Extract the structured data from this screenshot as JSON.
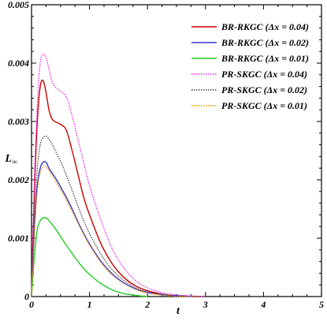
{
  "chart_data": {
    "type": "line",
    "xlabel": "t",
    "ylabel": "L",
    "ylabel_sub": "∞",
    "xlim": [
      0,
      5
    ],
    "ylim": [
      0,
      0.005
    ],
    "xticks": [
      0,
      1,
      2,
      3,
      4,
      5
    ],
    "xtick_labels": [
      "0",
      "1",
      "2",
      "3",
      "4",
      "5"
    ],
    "yticks": [
      0,
      0.001,
      0.002,
      0.003,
      0.004,
      0.005
    ],
    "ytick_labels": [
      "0",
      "0.001",
      "0.002",
      "0.003",
      "0.004",
      "0.005"
    ],
    "grid": false,
    "legend_position": "top-right",
    "series": [
      {
        "name": "BR-RKGC (Δx = 0.04)",
        "color": "#cc0000",
        "style": "solid",
        "x": [
          0,
          0.05,
          0.1,
          0.15,
          0.2,
          0.25,
          0.3,
          0.35,
          0.4,
          0.5,
          0.6,
          0.7,
          0.8,
          0.9,
          1.0,
          1.2,
          1.4,
          1.6,
          1.8,
          2.0,
          2.2,
          2.4,
          2.6,
          2.8,
          3.0
        ],
        "y": [
          0,
          0.0018,
          0.003,
          0.0036,
          0.0037,
          0.0035,
          0.0032,
          0.00305,
          0.003,
          0.00295,
          0.00285,
          0.0025,
          0.0021,
          0.0017,
          0.0014,
          0.0009,
          0.00055,
          0.00032,
          0.00018,
          0.0001,
          5e-05,
          2e-05,
          1e-05,
          0,
          0
        ]
      },
      {
        "name": "BR-RKGC (Δx = 0.02)",
        "color": "#3333cc",
        "style": "solid",
        "x": [
          0,
          0.05,
          0.1,
          0.15,
          0.2,
          0.25,
          0.3,
          0.35,
          0.4,
          0.5,
          0.6,
          0.7,
          0.8,
          0.9,
          1.0,
          1.2,
          1.4,
          1.6,
          1.8,
          2.0,
          2.2,
          2.4,
          2.6,
          2.8,
          3.0
        ],
        "y": [
          0,
          0.0012,
          0.0019,
          0.0022,
          0.0023,
          0.0023,
          0.0022,
          0.00212,
          0.00205,
          0.00188,
          0.0017,
          0.0015,
          0.00128,
          0.00108,
          0.0009,
          0.0006,
          0.00038,
          0.00023,
          0.00013,
          7e-05,
          4e-05,
          2e-05,
          1e-05,
          0,
          0
        ]
      },
      {
        "name": "BR-RKGC (Δx = 0.01)",
        "color": "#22cc22",
        "style": "solid",
        "x": [
          0,
          0.05,
          0.1,
          0.15,
          0.2,
          0.25,
          0.3,
          0.4,
          0.5,
          0.6,
          0.7,
          0.8,
          0.9,
          1.0,
          1.2,
          1.4,
          1.6,
          1.8,
          2.0
        ],
        "y": [
          0,
          0.0007,
          0.00115,
          0.0013,
          0.00135,
          0.00135,
          0.0013,
          0.00118,
          0.00103,
          0.00088,
          0.00074,
          0.0006,
          0.00048,
          0.00038,
          0.00022,
          0.00011,
          5e-05,
          2e-05,
          0
        ]
      },
      {
        "name": "PR-SKGC (Δx = 0.04)",
        "color": "#ee22ee",
        "style": "dotted",
        "x": [
          0,
          0.05,
          0.1,
          0.15,
          0.2,
          0.25,
          0.3,
          0.35,
          0.4,
          0.5,
          0.6,
          0.7,
          0.8,
          0.9,
          1.0,
          1.2,
          1.4,
          1.6,
          1.8,
          2.0,
          2.2,
          2.4,
          2.6,
          2.8,
          3.0
        ],
        "y": [
          0,
          0.002,
          0.0033,
          0.004,
          0.00415,
          0.0041,
          0.0039,
          0.0037,
          0.0036,
          0.00352,
          0.00342,
          0.0031,
          0.0027,
          0.0023,
          0.0019,
          0.0013,
          0.0008,
          0.00048,
          0.00027,
          0.00015,
          8e-05,
          4e-05,
          2e-05,
          1e-05,
          0
        ]
      },
      {
        "name": "PR-SKGC (Δx = 0.02)",
        "color": "#444444",
        "style": "dotted",
        "x": [
          0,
          0.05,
          0.1,
          0.15,
          0.2,
          0.25,
          0.3,
          0.35,
          0.4,
          0.5,
          0.6,
          0.7,
          0.8,
          0.9,
          1.0,
          1.2,
          1.4,
          1.6,
          1.8,
          2.0,
          2.2,
          2.4,
          2.6,
          2.8,
          3.0
        ],
        "y": [
          0,
          0.0013,
          0.0022,
          0.0026,
          0.00272,
          0.00275,
          0.0027,
          0.00262,
          0.00252,
          0.00232,
          0.00208,
          0.00182,
          0.00155,
          0.0013,
          0.00108,
          0.00072,
          0.00045,
          0.00027,
          0.00015,
          8e-05,
          4e-05,
          2e-05,
          1e-05,
          0,
          0
        ]
      },
      {
        "name": "PR-SKGC (Δx = 0.01)",
        "color": "#ff9900",
        "style": "dotted",
        "x": [
          0,
          0.05,
          0.1,
          0.15,
          0.2,
          0.25,
          0.3,
          0.35,
          0.4,
          0.5,
          0.6,
          0.7,
          0.8,
          0.9,
          1.0,
          1.2,
          1.4,
          1.6,
          1.8,
          2.0,
          2.2,
          2.4,
          2.6,
          2.8,
          3.0
        ],
        "y": [
          0,
          0.0011,
          0.0018,
          0.00212,
          0.00222,
          0.00222,
          0.00216,
          0.00208,
          0.002,
          0.00183,
          0.00165,
          0.00146,
          0.00126,
          0.00106,
          0.00088,
          0.00058,
          0.00036,
          0.00022,
          0.00012,
          6e-05,
          3e-05,
          1e-05,
          0,
          0,
          0
        ]
      }
    ]
  }
}
